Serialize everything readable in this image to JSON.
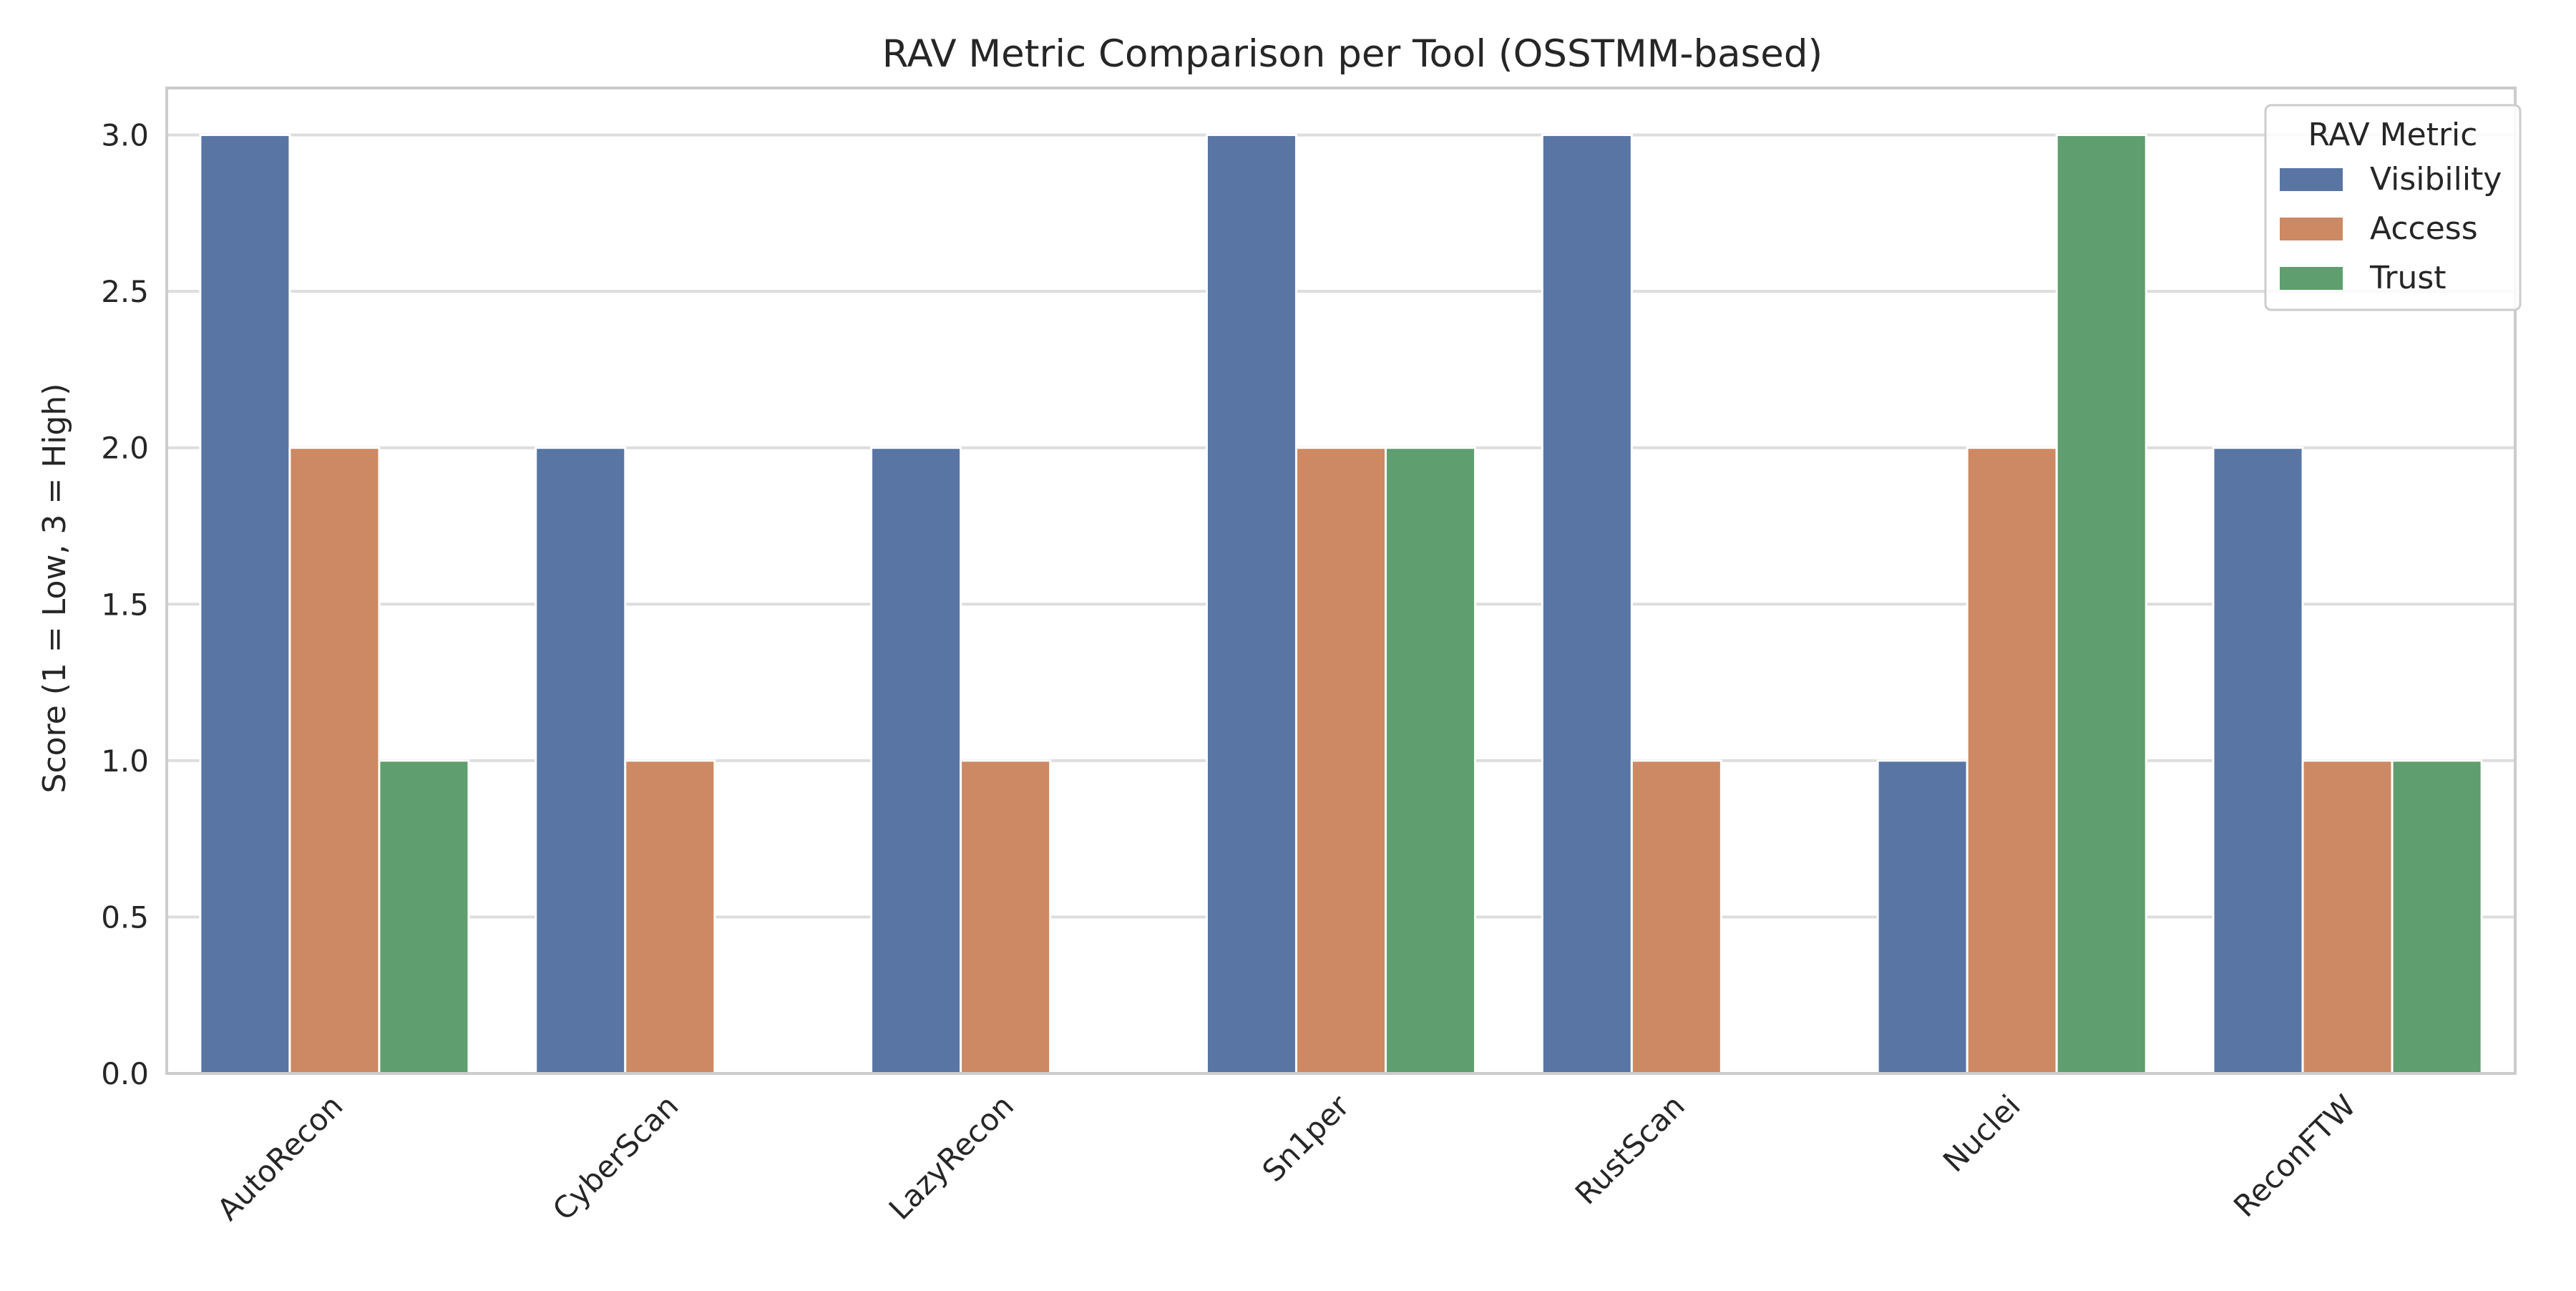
{
  "chart_data": {
    "type": "bar",
    "title": "RAV Metric Comparison per Tool (OSSTMM-based)",
    "xlabel": "",
    "ylabel": "Score (1 = Low, 3 = High)",
    "ylim": [
      0,
      3.15
    ],
    "yticks": [
      "0.0",
      "0.5",
      "1.0",
      "1.5",
      "2.0",
      "2.5",
      "3.0"
    ],
    "grid": true,
    "legend": {
      "title": "RAV Metric",
      "placement": "top-right"
    },
    "categories": [
      "AutoRecon",
      "CyberScan",
      "LazyRecon",
      "Sn1per",
      "RustScan",
      "Nuclei",
      "ReconFTW"
    ],
    "series": [
      {
        "name": "Visibility",
        "color": "#5875a4",
        "values": [
          3,
          2,
          2,
          3,
          3,
          1,
          2
        ]
      },
      {
        "name": "Access",
        "color": "#cc8963",
        "values": [
          2,
          1,
          1,
          2,
          1,
          2,
          1
        ]
      },
      {
        "name": "Trust",
        "color": "#5f9e6e",
        "values": [
          1,
          0,
          0,
          2,
          0,
          3,
          1
        ]
      }
    ]
  }
}
